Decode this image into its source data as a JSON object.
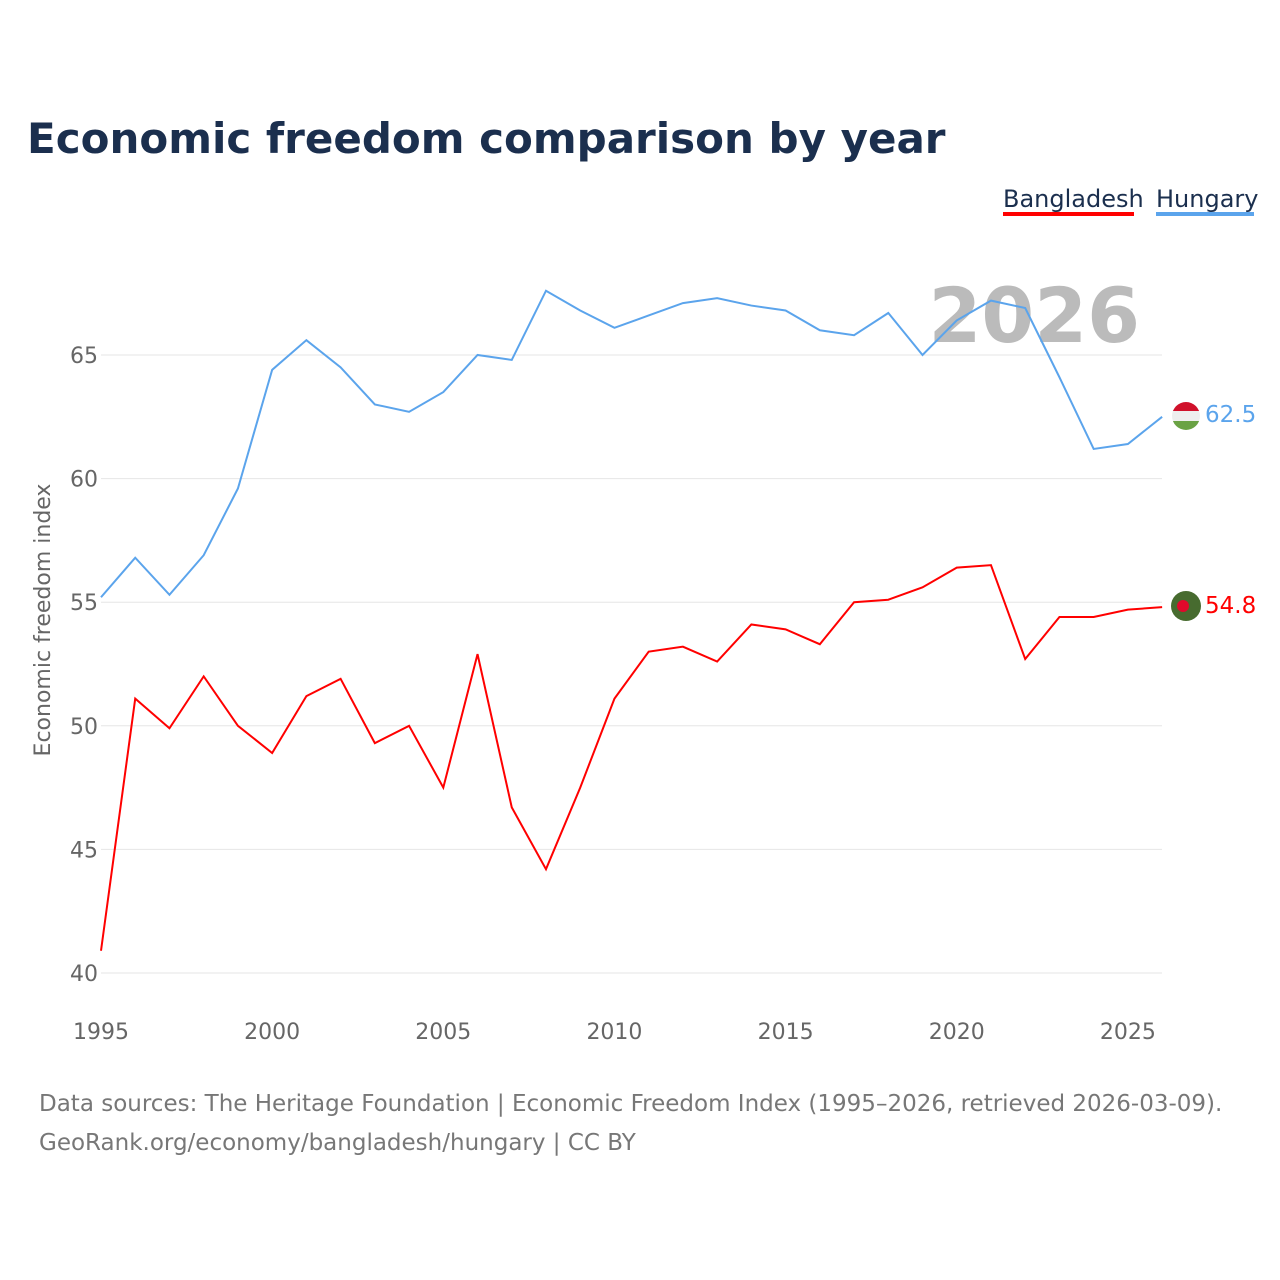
{
  "chart_data": {
    "type": "line",
    "title": "Economic freedom comparison by year",
    "ylabel": "Economic freedom index",
    "xlabel": "",
    "xlim": [
      1995,
      2026
    ],
    "ylim": [
      40,
      68
    ],
    "grid": true,
    "legend_placement": "top-right",
    "x_ticks": [
      "1995",
      "2000",
      "2005",
      "2010",
      "2015",
      "2020",
      "2025"
    ],
    "y_ticks": [
      "40",
      "45",
      "50",
      "55",
      "60",
      "65"
    ],
    "year_label": "2026",
    "x": [
      1995,
      1996,
      1997,
      1998,
      1999,
      2000,
      2001,
      2002,
      2003,
      2004,
      2005,
      2006,
      2007,
      2008,
      2009,
      2010,
      2011,
      2012,
      2013,
      2014,
      2015,
      2016,
      2017,
      2018,
      2019,
      2020,
      2021,
      2022,
      2023,
      2024,
      2025,
      2026
    ],
    "series": [
      {
        "name": "Bangladesh",
        "color": "#ff0000",
        "end_label": "54.8",
        "values": [
          40.9,
          51.1,
          49.9,
          52.0,
          50.0,
          48.9,
          51.2,
          51.9,
          49.3,
          50.0,
          47.5,
          52.9,
          46.7,
          44.2,
          47.5,
          51.1,
          53.0,
          53.2,
          52.6,
          54.1,
          53.9,
          53.3,
          55.0,
          55.1,
          55.6,
          56.4,
          56.5,
          52.7,
          54.4,
          54.4,
          54.7,
          54.8
        ]
      },
      {
        "name": "Hungary",
        "color": "#5ba4ec",
        "end_label": "62.5",
        "values": [
          55.2,
          56.8,
          55.3,
          56.9,
          59.6,
          64.4,
          65.6,
          64.5,
          63.0,
          62.7,
          63.5,
          65.0,
          64.8,
          67.6,
          66.8,
          66.1,
          66.6,
          67.1,
          67.3,
          67.0,
          66.8,
          66.0,
          65.8,
          66.7,
          65.0,
          66.4,
          67.2,
          66.9,
          64.1,
          61.2,
          61.4,
          62.5
        ]
      }
    ]
  },
  "footer": {
    "line1": "Data sources: The Heritage Foundation | Economic Freedom Index (1995–2026, retrieved 2026-03-09).",
    "line2": "GeoRank.org/economy/bangladesh/hungary | CC BY"
  }
}
